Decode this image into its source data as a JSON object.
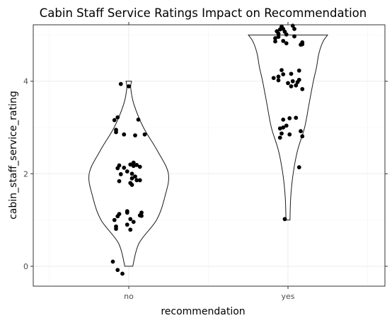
{
  "chart_data": {
    "type": "violin+jitter",
    "title": "Cabin Staff Service Ratings Impact on Recommendation",
    "xlabel": "recommendation",
    "ylabel": "cabin_staff_service_rating",
    "categories": [
      "no",
      "yes"
    ],
    "ylim": [
      -0.43,
      5.22
    ],
    "yticks": [
      0,
      2,
      4
    ],
    "grid": true,
    "violins": [
      {
        "category": "no",
        "min": 0,
        "max": 4,
        "profile": [
          [
            0.0,
            0.1
          ],
          [
            0.5,
            0.26
          ],
          [
            1.0,
            0.7
          ],
          [
            1.5,
            0.91
          ],
          [
            2.0,
            1.0
          ],
          [
            2.5,
            0.72
          ],
          [
            3.0,
            0.37
          ],
          [
            3.5,
            0.13
          ],
          [
            3.85,
            0.05
          ],
          [
            4.0,
            0.07
          ]
        ]
      },
      {
        "category": "yes",
        "min": 1,
        "max": 5,
        "profile": [
          [
            1.0,
            0.05
          ],
          [
            1.5,
            0.07
          ],
          [
            2.0,
            0.13
          ],
          [
            2.5,
            0.24
          ],
          [
            3.0,
            0.42
          ],
          [
            3.5,
            0.53
          ],
          [
            4.0,
            0.64
          ],
          [
            4.3,
            0.72
          ],
          [
            4.6,
            0.78
          ],
          [
            4.85,
            0.88
          ],
          [
            5.0,
            1.0
          ]
        ]
      }
    ],
    "points": {
      "no": [
        {
          "dx": -0.1,
          "y": 0.1
        },
        {
          "dx": -0.07,
          "y": -0.08
        },
        {
          "dx": -0.04,
          "y": -0.16
        },
        {
          "dx": -0.08,
          "y": 0.81
        },
        {
          "dx": -0.08,
          "y": 0.86
        },
        {
          "dx": -0.09,
          "y": 1.0
        },
        {
          "dx": -0.07,
          "y": 1.08
        },
        {
          "dx": -0.06,
          "y": 1.13
        },
        {
          "dx": -0.01,
          "y": 1.16
        },
        {
          "dx": -0.01,
          "y": 1.19
        },
        {
          "dx": 0.07,
          "y": 1.1
        },
        {
          "dx": 0.08,
          "y": 1.16
        },
        {
          "dx": 0.08,
          "y": 1.09
        },
        {
          "dx": 0.01,
          "y": 1.02
        },
        {
          "dx": 0.03,
          "y": 0.96
        },
        {
          "dx": -0.01,
          "y": 0.9
        },
        {
          "dx": 0.01,
          "y": 0.79
        },
        {
          "dx": -0.06,
          "y": 1.84
        },
        {
          "dx": -0.05,
          "y": 1.99
        },
        {
          "dx": -0.07,
          "y": 2.12
        },
        {
          "dx": -0.06,
          "y": 2.18
        },
        {
          "dx": -0.03,
          "y": 2.13
        },
        {
          "dx": -0.01,
          "y": 2.05
        },
        {
          "dx": 0.01,
          "y": 2.2
        },
        {
          "dx": 0.03,
          "y": 2.24
        },
        {
          "dx": 0.03,
          "y": 2.17
        },
        {
          "dx": 0.05,
          "y": 2.19
        },
        {
          "dx": 0.07,
          "y": 2.15
        },
        {
          "dx": 0.02,
          "y": 2.0
        },
        {
          "dx": 0.04,
          "y": 1.94
        },
        {
          "dx": 0.02,
          "y": 1.9
        },
        {
          "dx": 0.01,
          "y": 1.8
        },
        {
          "dx": 0.02,
          "y": 1.76
        },
        {
          "dx": 0.05,
          "y": 1.86
        },
        {
          "dx": 0.07,
          "y": 1.86
        },
        {
          "dx": -0.08,
          "y": 2.9
        },
        {
          "dx": -0.08,
          "y": 2.95
        },
        {
          "dx": -0.03,
          "y": 2.85
        },
        {
          "dx": 0.04,
          "y": 2.83
        },
        {
          "dx": 0.1,
          "y": 2.85
        },
        {
          "dx": -0.09,
          "y": 3.16
        },
        {
          "dx": -0.07,
          "y": 3.22
        },
        {
          "dx": 0.06,
          "y": 3.17
        },
        {
          "dx": -0.05,
          "y": 3.94
        },
        {
          "dx": 0.0,
          "y": 3.89
        }
      ],
      "yes": [
        {
          "dx": -0.02,
          "y": 1.02
        },
        {
          "dx": 0.07,
          "y": 2.14
        },
        {
          "dx": -0.05,
          "y": 2.78
        },
        {
          "dx": -0.04,
          "y": 2.87
        },
        {
          "dx": -0.05,
          "y": 2.98
        },
        {
          "dx": -0.03,
          "y": 3.0
        },
        {
          "dx": -0.01,
          "y": 3.04
        },
        {
          "dx": 0.01,
          "y": 2.85
        },
        {
          "dx": 0.09,
          "y": 2.81
        },
        {
          "dx": 0.08,
          "y": 2.92
        },
        {
          "dx": -0.03,
          "y": 3.17
        },
        {
          "dx": 0.01,
          "y": 3.2
        },
        {
          "dx": 0.05,
          "y": 3.21
        },
        {
          "dx": -0.09,
          "y": 4.07
        },
        {
          "dx": -0.06,
          "y": 4.1
        },
        {
          "dx": -0.06,
          "y": 4.02
        },
        {
          "dx": -0.04,
          "y": 4.24
        },
        {
          "dx": -0.03,
          "y": 4.15
        },
        {
          "dx": 0.0,
          "y": 3.96
        },
        {
          "dx": 0.02,
          "y": 4.16
        },
        {
          "dx": 0.03,
          "y": 4.0
        },
        {
          "dx": 0.02,
          "y": 3.89
        },
        {
          "dx": 0.05,
          "y": 3.91
        },
        {
          "dx": 0.06,
          "y": 3.98
        },
        {
          "dx": 0.07,
          "y": 4.03
        },
        {
          "dx": 0.07,
          "y": 4.23
        },
        {
          "dx": 0.09,
          "y": 3.83
        },
        {
          "dx": -0.08,
          "y": 4.86
        },
        {
          "dx": -0.08,
          "y": 4.93
        },
        {
          "dx": -0.06,
          "y": 5.03
        },
        {
          "dx": -0.07,
          "y": 5.08
        },
        {
          "dx": -0.06,
          "y": 4.96
        },
        {
          "dx": -0.05,
          "y": 5.12
        },
        {
          "dx": -0.04,
          "y": 5.18
        },
        {
          "dx": -0.03,
          "y": 5.13
        },
        {
          "dx": -0.02,
          "y": 5.07
        },
        {
          "dx": -0.01,
          "y": 5.01
        },
        {
          "dx": -0.03,
          "y": 4.87
        },
        {
          "dx": -0.01,
          "y": 4.82
        },
        {
          "dx": 0.03,
          "y": 5.2
        },
        {
          "dx": 0.04,
          "y": 5.13
        },
        {
          "dx": 0.04,
          "y": 4.97
        },
        {
          "dx": 0.09,
          "y": 4.8
        },
        {
          "dx": 0.09,
          "y": 4.84
        },
        {
          "dx": 0.08,
          "y": 4.79
        }
      ]
    }
  }
}
